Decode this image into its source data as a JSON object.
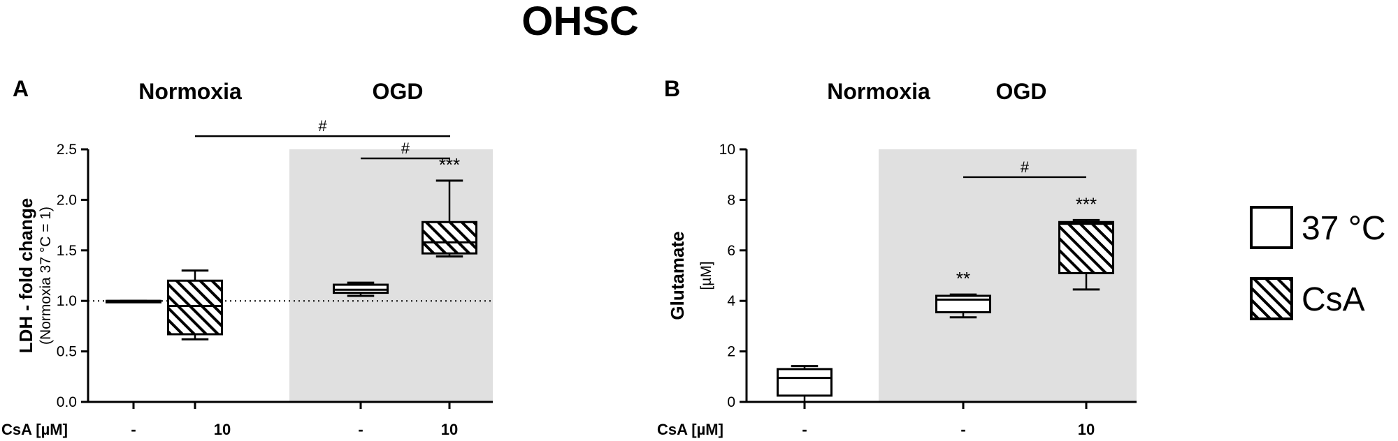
{
  "figure": {
    "title": "OHSC"
  },
  "colors": {
    "shade": "#e0e0e0",
    "stroke": "#000000",
    "fill_control": "#ffffff",
    "hatch": "#000000"
  },
  "legend": {
    "placement": "right",
    "items": [
      {
        "label": "37 °C",
        "pattern": "open"
      },
      {
        "label": "CsA",
        "pattern": "hatched"
      }
    ]
  },
  "chart_data": [
    {
      "type": "box",
      "panel_label": "A",
      "group_labels": [
        "Normoxia",
        "OGD"
      ],
      "shaded_group": "OGD",
      "ylabel": "LDH - fold change",
      "ylabel_sub": "(Normoxia 37 °C = 1)",
      "ylim": [
        0,
        2.5
      ],
      "yticks": [
        0.0,
        0.5,
        1.0,
        1.5,
        2.0,
        2.5
      ],
      "ytick_labels": [
        "0.0",
        "0.5",
        "1.0",
        "1.5",
        "2.0",
        "2.5"
      ],
      "reference_line": 1.0,
      "x_row_label": "CsA [µM]",
      "categories": [
        "-",
        "10",
        "-",
        "10"
      ],
      "boxes": [
        {
          "group": "Normoxia",
          "pattern": "open",
          "min": 1.0,
          "q1": 1.0,
          "median": 1.0,
          "q3": 1.0,
          "max": 1.0
        },
        {
          "group": "Normoxia",
          "pattern": "hatched",
          "min": 0.62,
          "q1": 0.67,
          "median": 0.95,
          "q3": 1.2,
          "max": 1.3
        },
        {
          "group": "OGD",
          "pattern": "open",
          "min": 1.05,
          "q1": 1.08,
          "median": 1.11,
          "q3": 1.16,
          "max": 1.18
        },
        {
          "group": "OGD",
          "pattern": "hatched",
          "min": 1.44,
          "q1": 1.47,
          "median": 1.58,
          "q3": 1.78,
          "max": 2.19
        }
      ],
      "annotations": [
        {
          "box": 3,
          "text": "***"
        }
      ],
      "brackets": [
        {
          "from": 1,
          "to": 3,
          "text": "#",
          "level": 2.63
        },
        {
          "from": 2,
          "to": 3,
          "text": "#",
          "level": 2.41
        }
      ]
    },
    {
      "type": "box",
      "panel_label": "B",
      "group_labels": [
        "Normoxia",
        "OGD"
      ],
      "shaded_group": "OGD",
      "ylabel": "Glutamate",
      "ylabel_sub": "[µM]",
      "ylim": [
        0,
        10
      ],
      "yticks": [
        0,
        2,
        4,
        6,
        8,
        10
      ],
      "ytick_labels": [
        "0",
        "2",
        "4",
        "6",
        "8",
        "10"
      ],
      "x_row_label": "CsA [µM]",
      "categories": [
        "-",
        "-",
        "10"
      ],
      "boxes": [
        {
          "group": "Normoxia",
          "pattern": "open",
          "min": 0.0,
          "q1": 0.25,
          "median": 0.95,
          "q3": 1.3,
          "max": 1.42
        },
        {
          "group": "OGD",
          "pattern": "open",
          "min": 3.35,
          "q1": 3.55,
          "median": 4.05,
          "q3": 4.2,
          "max": 4.25
        },
        {
          "group": "OGD",
          "pattern": "hatched",
          "min": 4.45,
          "q1": 5.1,
          "median": 7.05,
          "q3": 7.12,
          "max": 7.2
        }
      ],
      "annotations": [
        {
          "box": 1,
          "text": "**"
        },
        {
          "box": 2,
          "text": "***"
        }
      ],
      "brackets": [
        {
          "from": 1,
          "to": 2,
          "text": "#",
          "level": 8.9
        }
      ]
    }
  ]
}
